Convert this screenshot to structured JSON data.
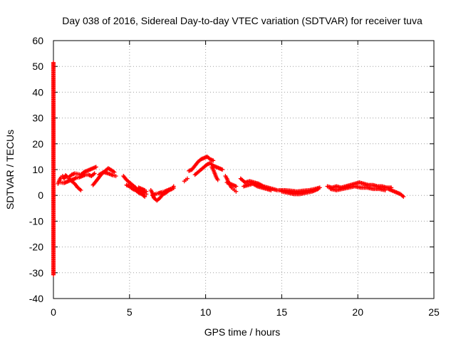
{
  "chart_data": {
    "type": "scatter",
    "title": "Day 038 of 2016, Sidereal Day-to-day VTEC variation (SDTVAR) for receiver tuva",
    "xlabel": "GPS time / hours",
    "ylabel": "SDTVAR / TECUs",
    "xlim": [
      0,
      25
    ],
    "ylim": [
      -40,
      60
    ],
    "xticks": [
      "0",
      "5",
      "10",
      "15",
      "20",
      "25"
    ],
    "yticks": [
      "-40",
      "-30",
      "-20",
      "-10",
      "0",
      "10",
      "20",
      "30",
      "40",
      "50",
      "60"
    ],
    "grid": true,
    "marker_color": "#ff0000",
    "series": [
      {
        "name": "SDTVAR",
        "x": [
          0.0,
          0.0,
          0.0,
          0.0
        ],
        "y": [
          51.5,
          35.5,
          18.5,
          -30.8
        ]
      },
      {
        "name": "SDTVAR",
        "x": [
          0.3,
          0.4,
          0.5,
          0.6,
          0.7,
          0.8,
          0.9,
          1.0,
          1.2,
          1.4,
          1.6,
          1.8,
          2.0,
          2.2,
          2.4,
          2.6,
          2.8
        ],
        "y": [
          4.5,
          6.0,
          7.0,
          7.5,
          6.5,
          7.8,
          7.2,
          7.0,
          8.0,
          8.5,
          8.3,
          8.0,
          9.0,
          9.5,
          10.0,
          10.5,
          11.0
        ]
      },
      {
        "name": "SDTVAR",
        "x": [
          0.5,
          0.7,
          0.9,
          1.1,
          1.3,
          1.5,
          1.7,
          1.9,
          2.1,
          2.3,
          2.5,
          2.7
        ],
        "y": [
          5.0,
          4.8,
          5.3,
          5.8,
          6.2,
          6.8,
          7.0,
          7.5,
          8.0,
          8.0,
          7.5,
          8.5
        ]
      },
      {
        "name": "SDTVAR",
        "x": [
          1.0,
          1.2,
          1.4,
          1.6,
          1.8
        ],
        "y": [
          6.5,
          5.5,
          4.5,
          3.0,
          2.0
        ]
      },
      {
        "name": "SDTVAR",
        "x": [
          2.6,
          2.8,
          3.0,
          3.2,
          3.4,
          3.6,
          3.8,
          4.0
        ],
        "y": [
          4.0,
          5.5,
          7.0,
          8.5,
          9.5,
          10.5,
          9.8,
          9.0
        ]
      },
      {
        "name": "SDTVAR",
        "x": [
          3.0,
          3.3,
          3.6,
          3.9,
          4.1
        ],
        "y": [
          8.0,
          9.0,
          8.5,
          7.8,
          7.5
        ]
      },
      {
        "name": "SDTVAR",
        "x": [
          4.6,
          4.8,
          5.0,
          5.2,
          5.4,
          5.6,
          5.8,
          6.0,
          6.1
        ],
        "y": [
          7.5,
          6.0,
          5.0,
          4.0,
          3.0,
          2.0,
          1.5,
          1.0,
          0.5
        ]
      },
      {
        "name": "SDTVAR",
        "x": [
          4.8,
          5.0,
          5.2,
          5.4,
          5.6,
          5.8,
          6.0
        ],
        "y": [
          4.0,
          3.5,
          2.5,
          2.0,
          1.0,
          0.5,
          -0.5
        ]
      },
      {
        "name": "SDTVAR",
        "x": [
          5.6,
          5.8,
          6.0,
          6.1
        ],
        "y": [
          3.0,
          2.5,
          2.0,
          1.5
        ]
      },
      {
        "name": "SDTVAR",
        "x": [
          6.4,
          6.5,
          6.6,
          6.8,
          7.0,
          7.2,
          7.4,
          7.6,
          7.8,
          7.9
        ],
        "y": [
          2.0,
          1.0,
          -1.0,
          -2.0,
          -1.0,
          0.5,
          1.0,
          2.0,
          2.5,
          3.5
        ]
      },
      {
        "name": "SDTVAR",
        "x": [
          6.5,
          6.7,
          6.9,
          7.1,
          7.3,
          7.5,
          7.7,
          7.9
        ],
        "y": [
          0.0,
          0.5,
          0.8,
          1.2,
          1.5,
          2.0,
          2.5,
          2.8
        ]
      },
      {
        "name": "SDTVAR",
        "x": [
          8.6,
          8.7,
          8.8
        ],
        "y": [
          5.5,
          6.0,
          6.5
        ]
      },
      {
        "name": "SDTVAR",
        "x": [
          8.9,
          9.1,
          9.3,
          9.5,
          9.7,
          9.9,
          10.1,
          10.3,
          10.5
        ],
        "y": [
          9.5,
          10.0,
          11.5,
          13.0,
          14.0,
          14.5,
          15.0,
          14.0,
          13.5
        ]
      },
      {
        "name": "SDTVAR",
        "x": [
          9.3,
          9.5,
          9.7,
          9.9,
          10.1,
          10.3,
          10.5,
          10.7,
          10.9,
          11.1
        ],
        "y": [
          8.0,
          9.0,
          10.0,
          11.0,
          12.0,
          12.5,
          11.5,
          11.0,
          10.5,
          10.0
        ]
      },
      {
        "name": "SDTVAR",
        "x": [
          10.4,
          10.5,
          10.6,
          10.7,
          10.8
        ],
        "y": [
          11.0,
          10.0,
          8.5,
          7.0,
          6.0
        ]
      },
      {
        "name": "SDTVAR",
        "x": [
          11.3,
          11.4,
          11.5,
          11.6,
          11.7,
          11.8,
          11.9,
          12.0
        ],
        "y": [
          7.5,
          6.5,
          5.0,
          4.0,
          3.0,
          2.5,
          2.0,
          1.5
        ]
      },
      {
        "name": "SDTVAR",
        "x": [
          11.4,
          11.6,
          11.8,
          12.0
        ],
        "y": [
          5.0,
          4.5,
          4.0,
          3.5
        ]
      },
      {
        "name": "SDTVAR",
        "x": [
          12.3,
          12.6,
          12.9,
          13.2,
          13.5,
          13.8,
          14.1,
          14.4,
          14.7
        ],
        "y": [
          6.5,
          5.0,
          5.5,
          5.0,
          4.5,
          3.5,
          3.0,
          2.5,
          2.0
        ]
      },
      {
        "name": "SDTVAR",
        "x": [
          12.5,
          12.8,
          13.1,
          13.4,
          13.7,
          14.0,
          14.3
        ],
        "y": [
          3.5,
          4.0,
          4.5,
          3.5,
          3.0,
          2.5,
          2.0
        ]
      },
      {
        "name": "SDTVAR",
        "x": [
          14.8,
          15.2,
          15.6,
          16.0,
          16.4,
          16.8,
          17.2,
          17.5
        ],
        "y": [
          2.0,
          2.0,
          1.8,
          1.5,
          1.8,
          2.0,
          2.5,
          3.0
        ]
      },
      {
        "name": "SDTVAR",
        "x": [
          15.0,
          15.4,
          15.8,
          16.2,
          16.6,
          17.0,
          17.4
        ],
        "y": [
          1.5,
          1.0,
          0.5,
          0.5,
          1.0,
          1.5,
          2.5
        ]
      },
      {
        "name": "SDTVAR",
        "x": [
          18.0,
          18.3,
          18.6,
          18.9,
          19.2,
          19.5,
          19.8,
          20.1,
          20.4,
          20.7,
          21.0,
          21.3,
          21.6,
          21.9,
          22.2
        ],
        "y": [
          3.5,
          3.0,
          3.5,
          3.0,
          3.5,
          4.0,
          4.5,
          5.0,
          4.5,
          4.0,
          4.0,
          3.5,
          3.5,
          3.0,
          3.0
        ]
      },
      {
        "name": "SDTVAR",
        "x": [
          18.2,
          18.6,
          19.0,
          19.4,
          19.8,
          20.2,
          20.6,
          21.0,
          21.4,
          21.8
        ],
        "y": [
          2.5,
          2.0,
          2.5,
          3.0,
          3.5,
          3.0,
          3.0,
          2.5,
          2.5,
          2.0
        ]
      },
      {
        "name": "SDTVAR",
        "x": [
          22.0,
          22.2,
          22.4,
          22.6,
          22.8,
          23.0
        ],
        "y": [
          2.5,
          2.0,
          1.5,
          1.0,
          0.5,
          -0.5
        ]
      }
    ]
  }
}
